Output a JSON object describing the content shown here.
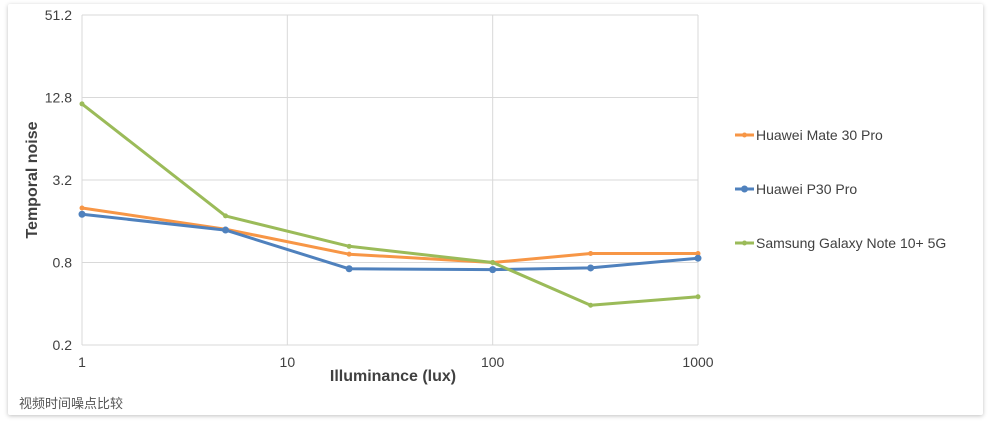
{
  "caption": "视频时间噪点比较",
  "chart_data": {
    "type": "line",
    "title": "",
    "xlabel": "Illuminance (lux)",
    "ylabel": "Temporal noise",
    "x_scale": "log",
    "y_scale": "log",
    "xlim": [
      1,
      1000
    ],
    "ylim": [
      0.2,
      51.2
    ],
    "x_ticks": [
      1,
      10,
      100,
      1000
    ],
    "x_tick_labels": [
      "1",
      "10",
      "100",
      "1000"
    ],
    "y_ticks": [
      0.2,
      0.8,
      3.2,
      12.8,
      51.2
    ],
    "y_tick_labels": [
      "0.2",
      "0.8",
      "3.2",
      "12.8",
      "51.2"
    ],
    "grid": true,
    "legend_position": "right",
    "x": [
      1,
      5,
      20,
      100,
      300,
      1000
    ],
    "series": [
      {
        "name": "Huawei Mate 30 Pro",
        "color": "#F79646",
        "values": [
          2.0,
          1.4,
          0.92,
          0.8,
          0.93,
          0.93
        ]
      },
      {
        "name": "Huawei P30 Pro",
        "color": "#4F81BD",
        "values": [
          1.8,
          1.38,
          0.72,
          0.71,
          0.73,
          0.86
        ]
      },
      {
        "name": "Samsung Galaxy Note 10+ 5G",
        "color": "#9BBB59",
        "values": [
          11.5,
          1.75,
          1.05,
          0.8,
          0.39,
          0.45
        ]
      }
    ]
  }
}
